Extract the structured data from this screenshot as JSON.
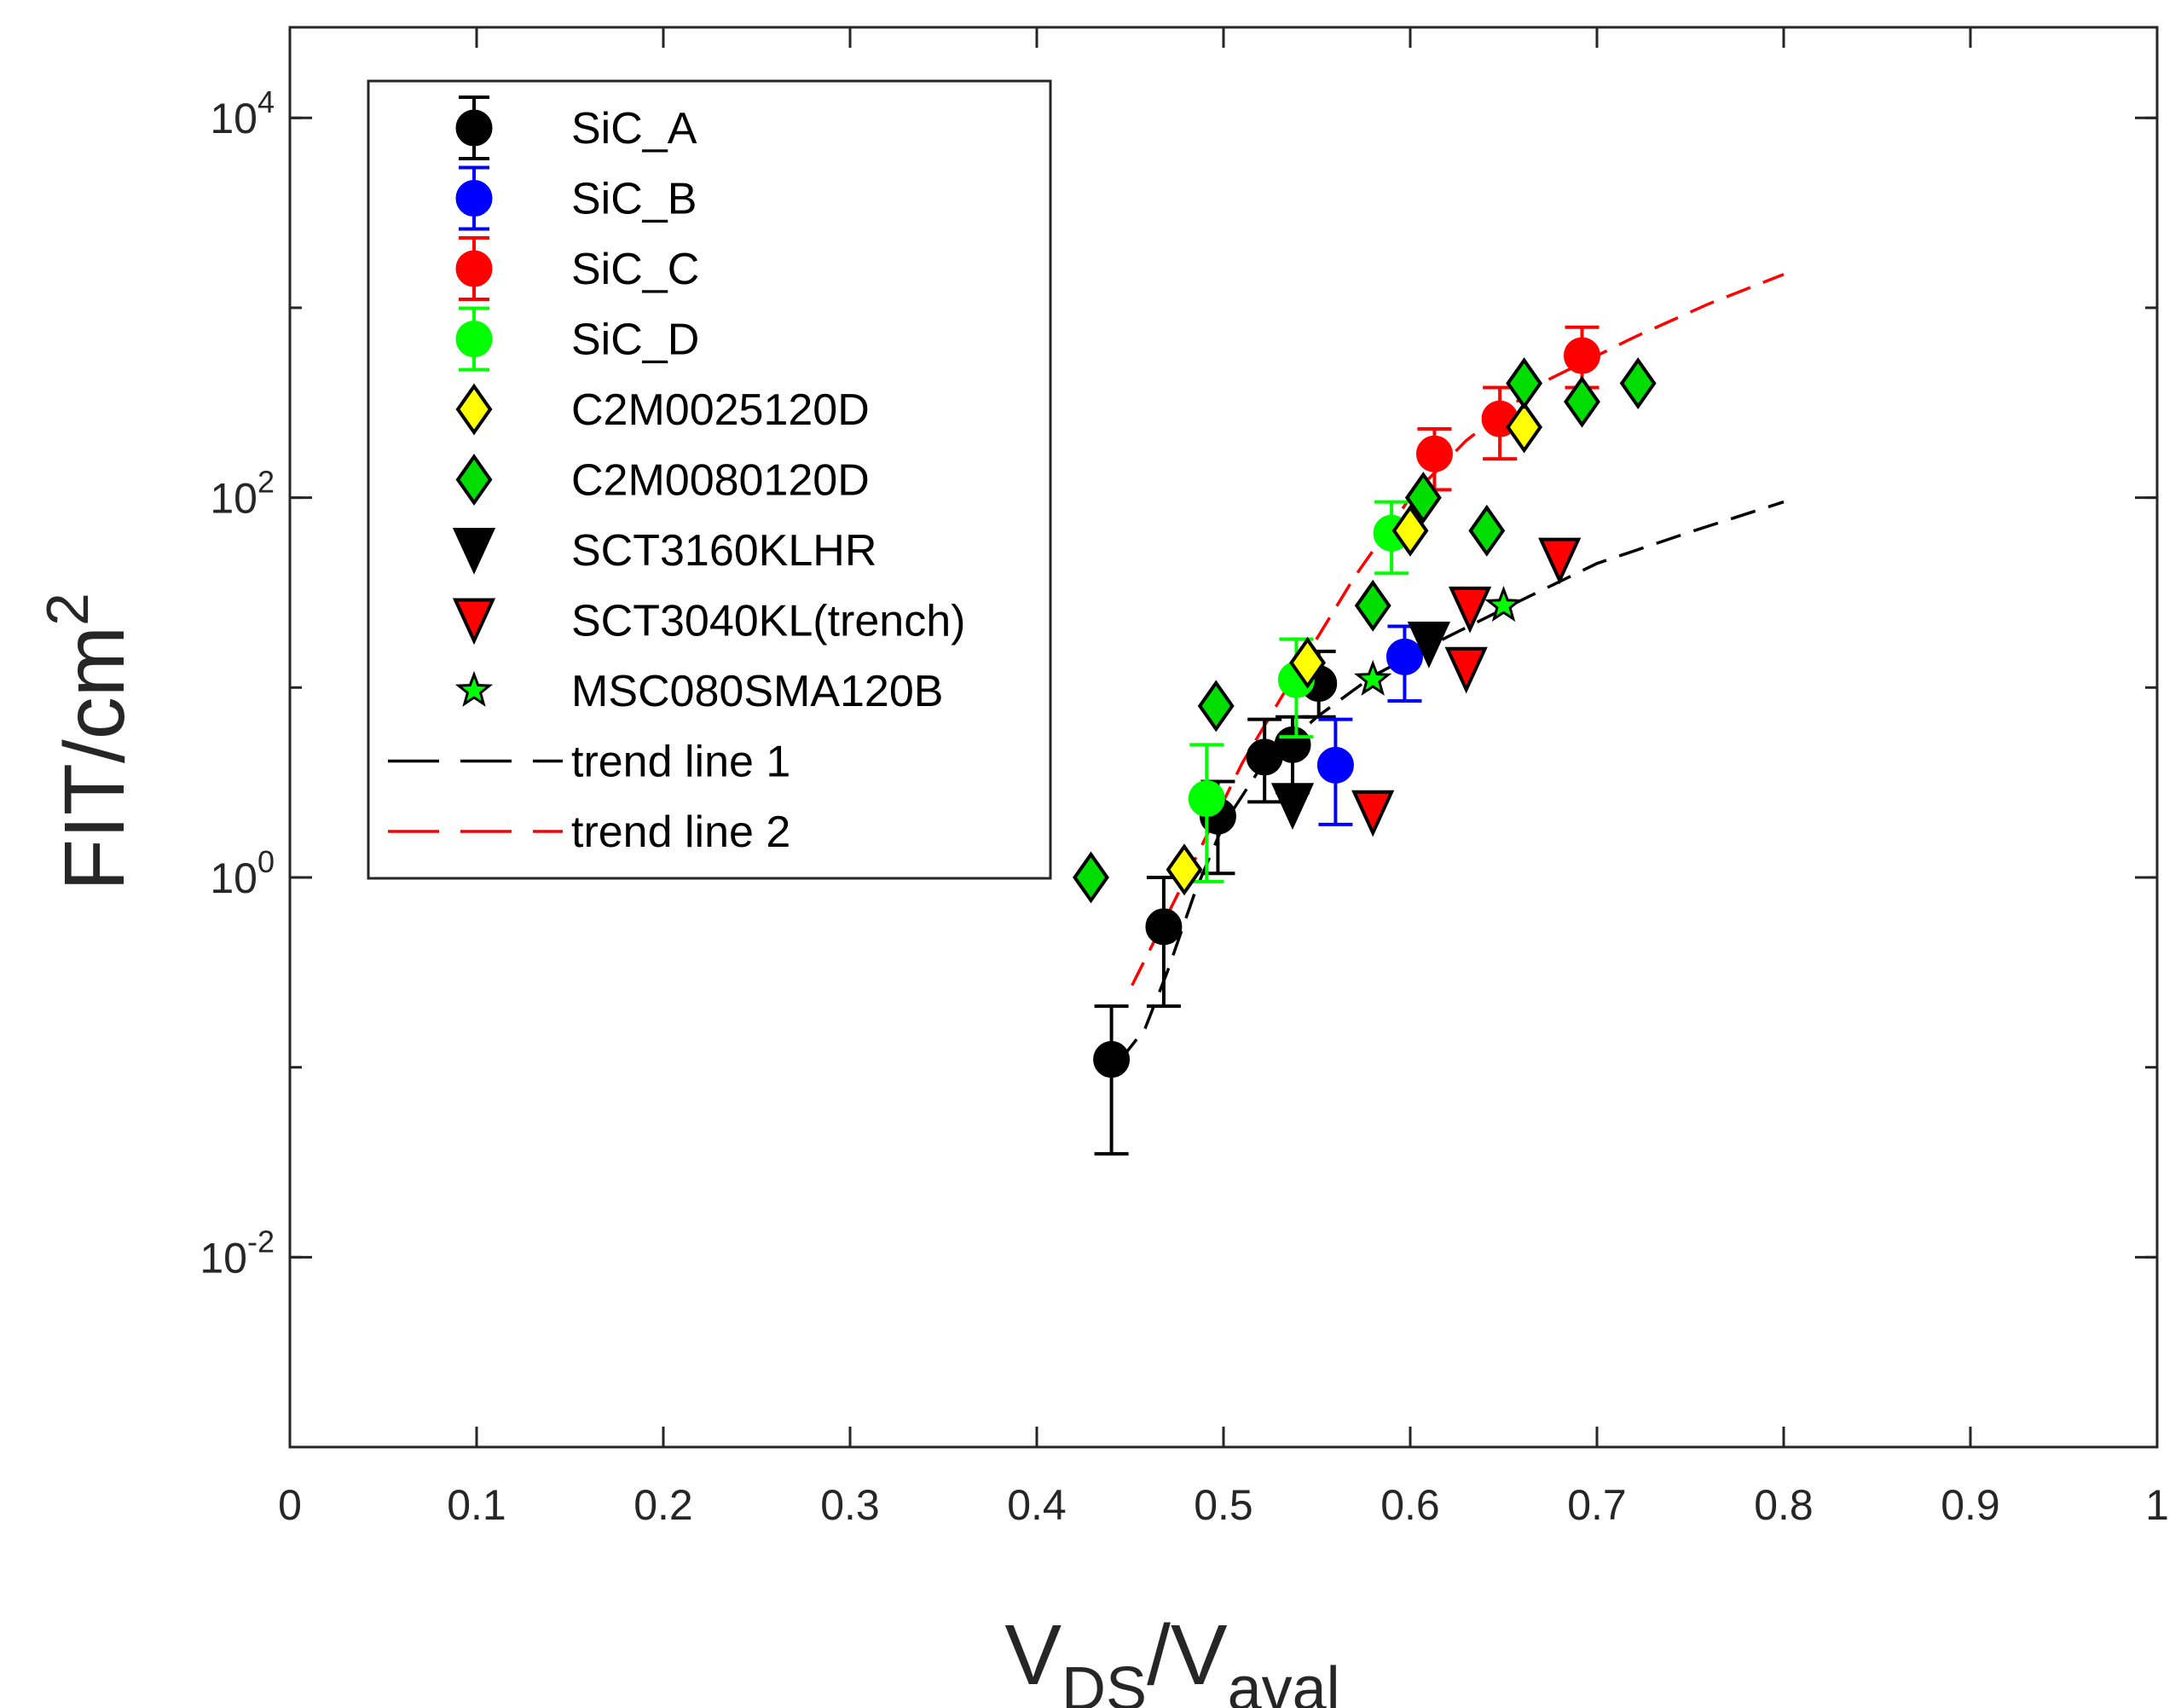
{
  "chart_data": {
    "type": "scatter",
    "title": "",
    "xlabel": {
      "main": "V",
      "sub1": "DS",
      "slash": "/V",
      "sub2": "aval"
    },
    "ylabel": {
      "main": "FIT/cm",
      "sup": "2"
    },
    "xlim": [
      0,
      1
    ],
    "ylim": [
      0.001,
      30000
    ],
    "yscale": "log",
    "x_ticks": [
      {
        "value": 0,
        "label": "0"
      },
      {
        "value": 0.1,
        "label": "0.1"
      },
      {
        "value": 0.2,
        "label": "0.2"
      },
      {
        "value": 0.3,
        "label": "0.3"
      },
      {
        "value": 0.4,
        "label": "0.4"
      },
      {
        "value": 0.5,
        "label": "0.5"
      },
      {
        "value": 0.6,
        "label": "0.6"
      },
      {
        "value": 0.7,
        "label": "0.7"
      },
      {
        "value": 0.8,
        "label": "0.8"
      },
      {
        "value": 0.9,
        "label": "0.9"
      },
      {
        "value": 1,
        "label": "1"
      }
    ],
    "y_ticks": [
      {
        "value": 0.01,
        "base": "10",
        "exp": "-2"
      },
      {
        "value": 1,
        "base": "10",
        "exp": "0"
      },
      {
        "value": 100,
        "base": "10",
        "exp": "2"
      },
      {
        "value": 10000,
        "base": "10",
        "exp": "4"
      }
    ],
    "legend_position": "top-left",
    "series": [
      {
        "name": "SiC_A",
        "marker": "circle",
        "fill": "#000000",
        "stroke": "#000000",
        "errcolor": "#000000",
        "points": [
          {
            "x": 0.44,
            "y": 0.11,
            "lo": 0.035,
            "hi": 0.21
          },
          {
            "x": 0.468,
            "y": 0.55,
            "lo": 0.21,
            "hi": 1.0
          },
          {
            "x": 0.497,
            "y": 2.1,
            "lo": 1.05,
            "hi": 3.2
          },
          {
            "x": 0.522,
            "y": 4.3,
            "lo": 2.5,
            "hi": 6.8
          },
          {
            "x": 0.537,
            "y": 5.0,
            "lo": 2.8,
            "hi": 7.0
          },
          {
            "x": 0.551,
            "y": 10.5,
            "lo": 7.0,
            "hi": 15.5
          }
        ]
      },
      {
        "name": "SiC_B",
        "marker": "circle",
        "fill": "#0000ff",
        "stroke": "#0000ff",
        "errcolor": "#0000ff",
        "points": [
          {
            "x": 0.56,
            "y": 3.9,
            "lo": 1.9,
            "hi": 6.8
          },
          {
            "x": 0.597,
            "y": 14.5,
            "lo": 8.5,
            "hi": 21.0
          }
        ]
      },
      {
        "name": "SiC_C",
        "marker": "circle",
        "fill": "#ff0000",
        "stroke": "#ff0000",
        "errcolor": "#ff0000",
        "points": [
          {
            "x": 0.613,
            "y": 170,
            "lo": 110,
            "hi": 230
          },
          {
            "x": 0.648,
            "y": 260,
            "lo": 160,
            "hi": 380
          },
          {
            "x": 0.692,
            "y": 560,
            "lo": 380,
            "hi": 790
          }
        ]
      },
      {
        "name": "SiC_D",
        "marker": "circle",
        "fill": "#00ff00",
        "stroke": "#00ff00",
        "errcolor": "#00ff00",
        "points": [
          {
            "x": 0.491,
            "y": 2.6,
            "lo": 0.95,
            "hi": 5.0
          },
          {
            "x": 0.539,
            "y": 11.0,
            "lo": 5.5,
            "hi": 18.0
          },
          {
            "x": 0.59,
            "y": 65,
            "lo": 40,
            "hi": 95
          }
        ]
      },
      {
        "name": "C2M0025120D",
        "marker": "diamond",
        "fill": "#ffff00",
        "stroke": "#000000",
        "points": [
          {
            "x": 0.479,
            "y": 1.1
          },
          {
            "x": 0.545,
            "y": 13.5
          },
          {
            "x": 0.6,
            "y": 67
          },
          {
            "x": 0.661,
            "y": 235
          }
        ]
      },
      {
        "name": "C2M0080120D",
        "marker": "diamond",
        "fill": "#00dd00",
        "stroke": "#000000",
        "points": [
          {
            "x": 0.429,
            "y": 1.0
          },
          {
            "x": 0.496,
            "y": 8.0
          },
          {
            "x": 0.58,
            "y": 27
          },
          {
            "x": 0.607,
            "y": 100
          },
          {
            "x": 0.641,
            "y": 67
          },
          {
            "x": 0.661,
            "y": 400
          },
          {
            "x": 0.692,
            "y": 320
          },
          {
            "x": 0.722,
            "y": 400
          }
        ]
      },
      {
        "name": "SCT3160KLHR",
        "marker": "triangle-down",
        "fill": "#000000",
        "stroke": "#000000",
        "points": [
          {
            "x": 0.537,
            "y": 2.4
          },
          {
            "x": 0.61,
            "y": 17
          }
        ]
      },
      {
        "name": "SCT3040KL(trench)",
        "marker": "triangle-down",
        "fill": "#ff0000",
        "stroke": "#000000",
        "points": [
          {
            "x": 0.58,
            "y": 2.2
          },
          {
            "x": 0.63,
            "y": 12.5
          },
          {
            "x": 0.632,
            "y": 26
          },
          {
            "x": 0.68,
            "y": 47
          }
        ]
      },
      {
        "name": "MSC080SMA120B",
        "marker": "star",
        "fill": "#00ff00",
        "stroke": "#000000",
        "points": [
          {
            "x": 0.58,
            "y": 11.0
          },
          {
            "x": 0.65,
            "y": 27
          }
        ]
      }
    ],
    "trend_lines": [
      {
        "name": "trend line 1",
        "color": "#000000",
        "style": "dashed",
        "points": [
          {
            "x": 0.445,
            "y": 0.11
          },
          {
            "x": 0.458,
            "y": 0.16
          },
          {
            "x": 0.47,
            "y": 0.32
          },
          {
            "x": 0.485,
            "y": 0.85
          },
          {
            "x": 0.5,
            "y": 1.9
          },
          {
            "x": 0.52,
            "y": 3.8
          },
          {
            "x": 0.55,
            "y": 7.0
          },
          {
            "x": 0.58,
            "y": 11.5
          },
          {
            "x": 0.62,
            "y": 18.5
          },
          {
            "x": 0.66,
            "y": 29
          },
          {
            "x": 0.7,
            "y": 45
          },
          {
            "x": 0.75,
            "y": 66
          },
          {
            "x": 0.8,
            "y": 95
          }
        ]
      },
      {
        "name": "trend line 2",
        "color": "#ff0000",
        "style": "dashed",
        "points": [
          {
            "x": 0.451,
            "y": 0.27
          },
          {
            "x": 0.48,
            "y": 1.0
          },
          {
            "x": 0.51,
            "y": 4.0
          },
          {
            "x": 0.54,
            "y": 12.5
          },
          {
            "x": 0.57,
            "y": 38
          },
          {
            "x": 0.6,
            "y": 100
          },
          {
            "x": 0.63,
            "y": 200
          },
          {
            "x": 0.67,
            "y": 400
          },
          {
            "x": 0.72,
            "y": 700
          },
          {
            "x": 0.76,
            "y": 1050
          },
          {
            "x": 0.8,
            "y": 1500
          }
        ]
      }
    ]
  }
}
